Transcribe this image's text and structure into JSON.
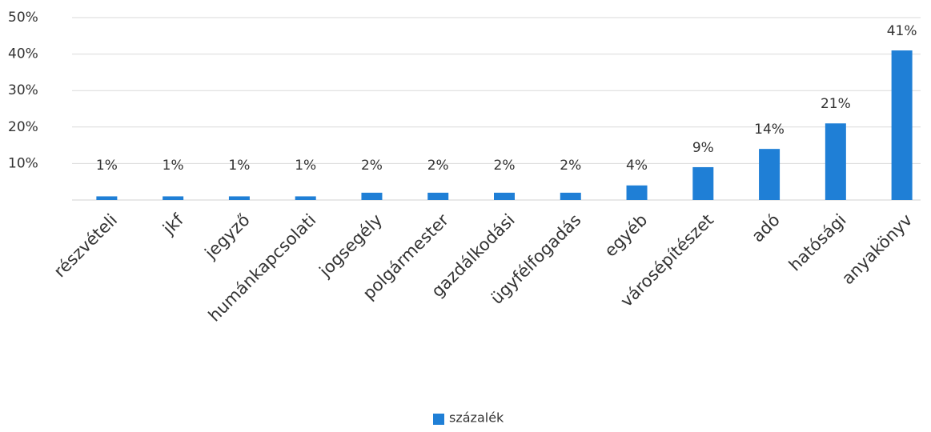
{
  "chart_data": {
    "type": "bar",
    "categories": [
      "részvételi",
      "jkf",
      "jegyző",
      "humánkapcsolati",
      "jogsegély",
      "polgármester",
      "gazdálkodási",
      "ügyfélfogadás",
      "egyéb",
      "városépítészet",
      "adó",
      "hatósági",
      "anyakönyv"
    ],
    "series": [
      {
        "name": "százalék",
        "color": "#1f7fd6",
        "values": [
          1,
          1,
          1,
          1,
          2,
          2,
          2,
          2,
          4,
          9,
          14,
          21,
          41
        ],
        "value_labels": [
          "1%",
          "1%",
          "1%",
          "1%",
          "2%",
          "2%",
          "2%",
          "2%",
          "4%",
          "9%",
          "14%",
          "21%",
          "41%"
        ]
      }
    ],
    "ylim": [
      0,
      50
    ],
    "yticks": [
      {
        "value": 10,
        "label": "10%"
      },
      {
        "value": 20,
        "label": "20%"
      },
      {
        "value": 30,
        "label": "30%"
      },
      {
        "value": 40,
        "label": "40%"
      },
      {
        "value": 50,
        "label": "50%"
      }
    ],
    "grid": true,
    "legend": "bottom"
  }
}
